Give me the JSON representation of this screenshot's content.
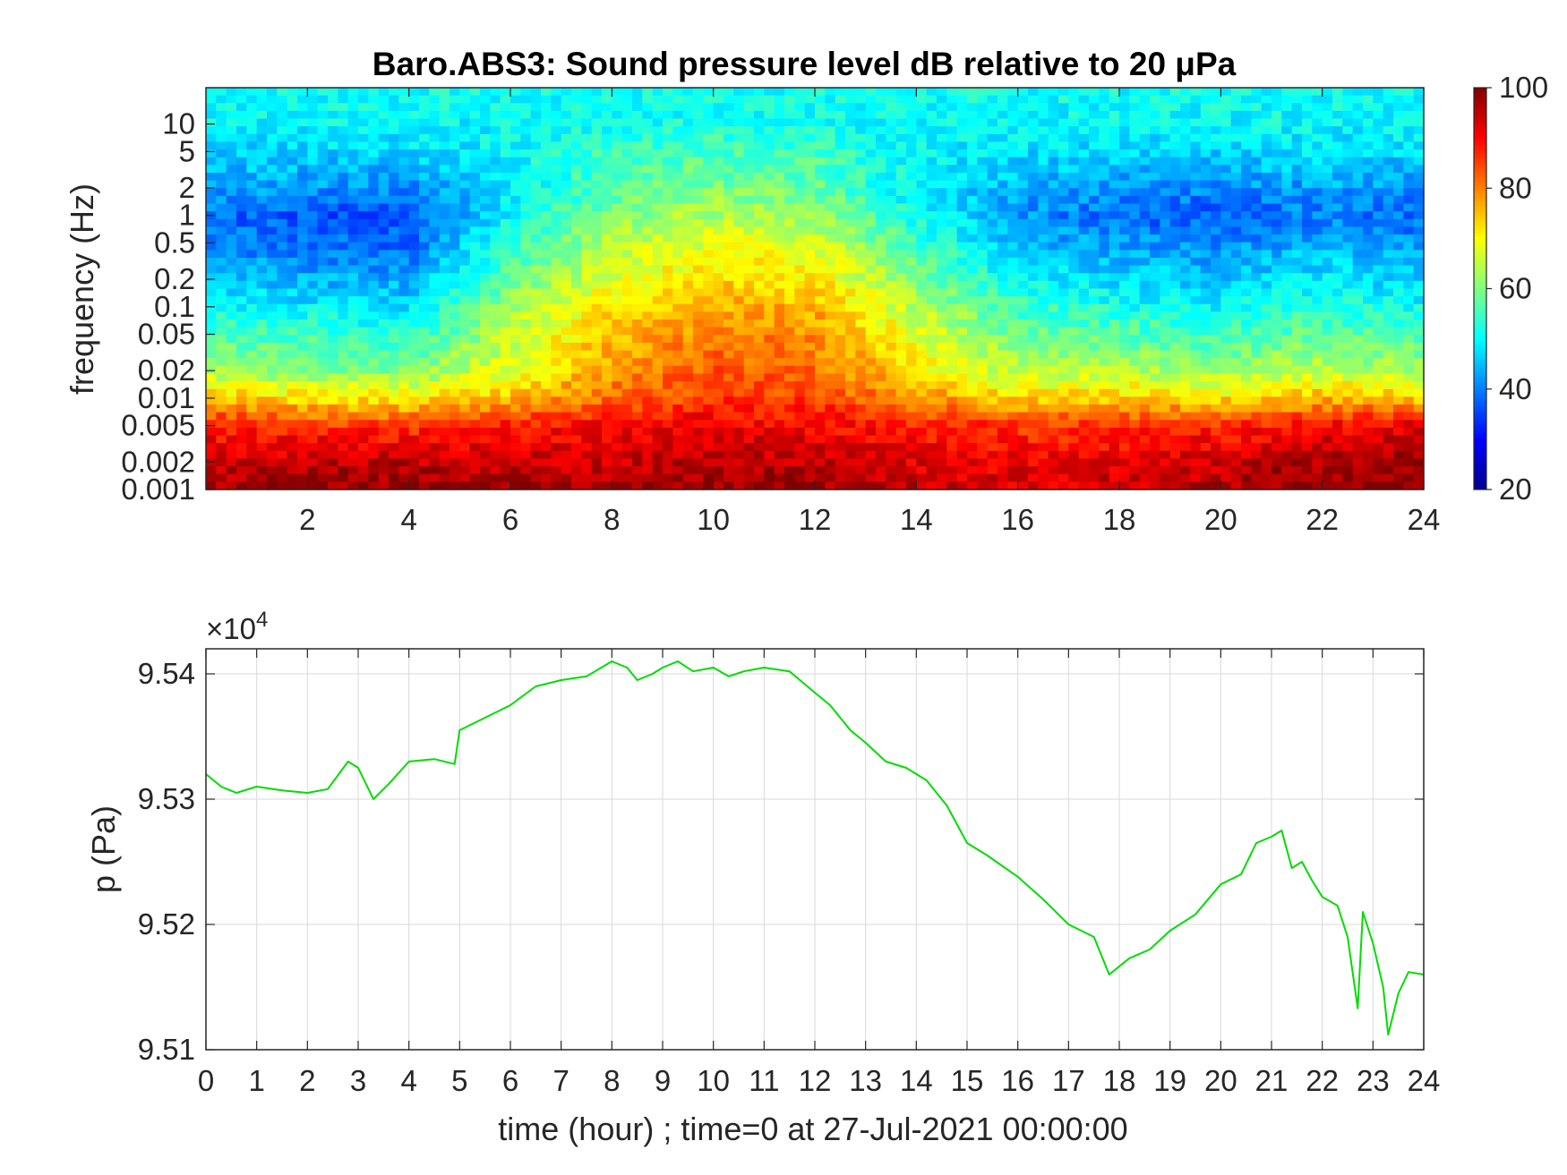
{
  "chart_data": [
    {
      "type": "heatmap",
      "title": "Baro.ABS3: Sound pressure level dB relative to 20 μPa",
      "xlabel": "",
      "ylabel": "frequency (Hz)",
      "xlim": [
        0,
        24
      ],
      "x_ticks": [
        2,
        4,
        6,
        8,
        10,
        12,
        14,
        16,
        18,
        20,
        22,
        24
      ],
      "y_scale": "log",
      "ylim": [
        0.001,
        25
      ],
      "y_ticks": [
        0.001,
        0.002,
        0.005,
        0.01,
        0.02,
        0.05,
        0.1,
        0.2,
        0.5,
        1,
        2,
        5,
        10
      ],
      "y_tick_labels": [
        "0.001",
        "0.002",
        "0.005",
        "0.01",
        "0.02",
        "0.05",
        "0.1",
        "0.2",
        "0.5",
        "1",
        "2",
        "5",
        "10"
      ],
      "colorbar": {
        "min": 20,
        "max": 100,
        "ticks": [
          20,
          40,
          60,
          80,
          100
        ],
        "colormap": "jet",
        "placement": "right"
      },
      "time_bins": [
        0,
        2,
        4,
        6,
        8,
        10,
        12,
        14,
        16,
        18,
        20,
        22,
        24
      ],
      "freq_bins": [
        0.001,
        0.002,
        0.005,
        0.01,
        0.02,
        0.05,
        0.1,
        0.2,
        0.5,
        1,
        2,
        5,
        10,
        20
      ],
      "values_db": [
        [
          97,
          99,
          99,
          98,
          97,
          99,
          98,
          95,
          93,
          94,
          96,
          99,
          100
        ],
        [
          94,
          95,
          95,
          94,
          94,
          96,
          95,
          92,
          91,
          92,
          94,
          97,
          98
        ],
        [
          88,
          86,
          86,
          88,
          90,
          91,
          90,
          88,
          86,
          86,
          87,
          90,
          92
        ],
        [
          75,
          72,
          71,
          75,
          82,
          86,
          85,
          79,
          73,
          74,
          72,
          76,
          74
        ],
        [
          63,
          60,
          60,
          68,
          78,
          83,
          82,
          72,
          64,
          64,
          62,
          65,
          62
        ],
        [
          56,
          55,
          53,
          65,
          75,
          80,
          79,
          68,
          59,
          57,
          55,
          58,
          55
        ],
        [
          50,
          49,
          48,
          62,
          72,
          77,
          76,
          64,
          55,
          52,
          50,
          53,
          50
        ],
        [
          45,
          44,
          43,
          58,
          68,
          73,
          72,
          60,
          50,
          47,
          46,
          49,
          46
        ],
        [
          40,
          39,
          38,
          54,
          64,
          68,
          67,
          55,
          45,
          42,
          41,
          44,
          41
        ],
        [
          38,
          37,
          36,
          50,
          60,
          64,
          62,
          51,
          42,
          38,
          37,
          40,
          38
        ],
        [
          43,
          42,
          41,
          49,
          57,
          60,
          58,
          49,
          44,
          41,
          41,
          43,
          42
        ],
        [
          47,
          47,
          47,
          50,
          54,
          56,
          55,
          50,
          48,
          47,
          47,
          48,
          47
        ],
        [
          50,
          50,
          50,
          50,
          51,
          52,
          51,
          50,
          50,
          50,
          50,
          50,
          50
        ],
        [
          51,
          51,
          51,
          51,
          51,
          51,
          51,
          51,
          51,
          51,
          51,
          51,
          51
        ]
      ]
    },
    {
      "type": "line",
      "title": "",
      "xlabel": "time (hour) ; time=0 at 27-Jul-2021 00:00:00",
      "ylabel": "p (Pa)",
      "y_multiplier": "×10",
      "y_multiplier_exponent": "4",
      "xlim": [
        0,
        24
      ],
      "ylim": [
        9.51,
        9.542
      ],
      "x_ticks": [
        0,
        1,
        2,
        3,
        4,
        5,
        6,
        7,
        8,
        9,
        10,
        11,
        12,
        13,
        14,
        15,
        16,
        17,
        18,
        19,
        20,
        21,
        22,
        23,
        24
      ],
      "y_ticks": [
        9.51,
        9.52,
        9.53,
        9.54
      ],
      "y_tick_labels": [
        "9.51",
        "9.52",
        "9.53",
        "9.54"
      ],
      "grid": true,
      "series": [
        {
          "color": "#00dd00",
          "x": [
            0,
            0.3,
            0.6,
            1.0,
            1.5,
            2.0,
            2.4,
            2.8,
            3.0,
            3.3,
            3.6,
            4.0,
            4.5,
            4.9,
            5.0,
            5.5,
            6.0,
            6.5,
            7.0,
            7.5,
            8.0,
            8.3,
            8.5,
            8.8,
            9.0,
            9.3,
            9.6,
            10.0,
            10.3,
            10.6,
            11.0,
            11.5,
            12.0,
            12.3,
            12.7,
            13.0,
            13.4,
            13.8,
            14.2,
            14.6,
            15.0,
            15.4,
            16.0,
            16.5,
            17.0,
            17.5,
            17.8,
            18.2,
            18.6,
            19.0,
            19.5,
            20.0,
            20.4,
            20.7,
            21.0,
            21.2,
            21.4,
            21.6,
            21.8,
            22.0,
            22.3,
            22.5,
            22.7,
            22.8,
            23.0,
            23.2,
            23.3,
            23.5,
            23.7,
            24.0
          ],
          "y": [
            9.532,
            9.531,
            9.5305,
            9.531,
            9.5307,
            9.5305,
            9.5308,
            9.533,
            9.5325,
            9.53,
            9.5312,
            9.533,
            9.5332,
            9.5328,
            9.5355,
            9.5365,
            9.5375,
            9.539,
            9.5395,
            9.5398,
            9.541,
            9.5405,
            9.5395,
            9.54,
            9.5405,
            9.541,
            9.5402,
            9.5405,
            9.5398,
            9.5402,
            9.5405,
            9.5402,
            9.5385,
            9.5375,
            9.5355,
            9.5345,
            9.533,
            9.5325,
            9.5315,
            9.5295,
            9.5265,
            9.5255,
            9.5238,
            9.522,
            9.52,
            9.519,
            9.516,
            9.5173,
            9.518,
            9.5195,
            9.5208,
            9.5232,
            9.524,
            9.5265,
            9.527,
            9.5275,
            9.5245,
            9.525,
            9.5235,
            9.5222,
            9.5215,
            9.519,
            9.5133,
            9.521,
            9.5185,
            9.515,
            9.5112,
            9.5145,
            9.5162,
            9.516
          ]
        }
      ]
    }
  ]
}
